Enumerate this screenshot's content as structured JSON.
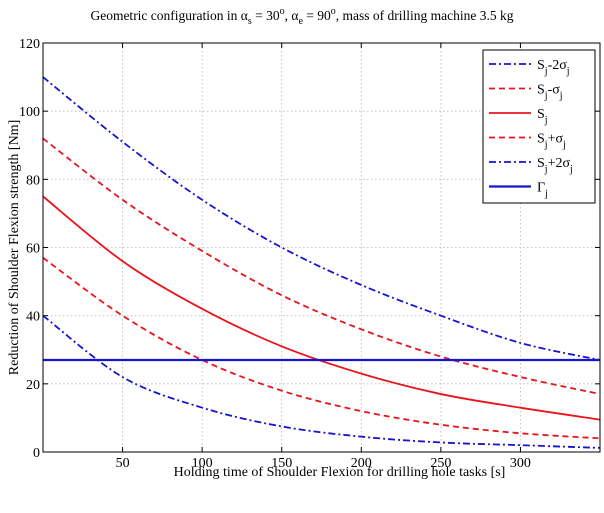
{
  "chart_data": {
    "type": "line",
    "title": {
      "prefix": "Geometric configuration in ",
      "alpha_s_sub": "s",
      "alpha_s_val": " = 30",
      "alpha_s_sup": "o",
      "sep": ", ",
      "alpha_e_sub": "e",
      "alpha_e_val": " = 90",
      "alpha_e_sup": "o",
      "suffix": ", mass of drilling machine 3.5 kg"
    },
    "xlabel": "Holding time of Shoulder Flexion for drilling hole tasks [s]",
    "ylabel": "Reduction of Shoulder Flexion strength [Nm]",
    "xlim": [
      0,
      350
    ],
    "ylim": [
      0,
      120
    ],
    "xticks": [
      "50",
      "100",
      "150",
      "200",
      "250",
      "300"
    ],
    "yticks": [
      "0",
      "20",
      "40",
      "60",
      "80",
      "100",
      "120"
    ],
    "grid": true,
    "legend_position": "top-right",
    "colors": {
      "red": "#e8141c",
      "blue": "#1414d2"
    },
    "x": [
      0,
      50,
      100,
      150,
      200,
      250,
      300,
      350
    ],
    "series": [
      {
        "key": "s_minus_2sigma",
        "values": [
          110,
          91,
          74,
          60,
          49,
          40,
          32,
          27
        ]
      },
      {
        "key": "s_minus_sigma",
        "values": [
          92,
          74,
          59,
          46,
          36,
          28,
          22,
          17
        ]
      },
      {
        "key": "s",
        "values": [
          75,
          56,
          42,
          31,
          23,
          17,
          13,
          9.5
        ]
      },
      {
        "key": "s_plus_sigma",
        "values": [
          57,
          40,
          27,
          18,
          12,
          8,
          5.5,
          4
        ]
      },
      {
        "key": "s_plus_2sigma",
        "values": [
          40,
          22,
          13,
          7.5,
          4.5,
          2.8,
          2,
          1.2
        ]
      },
      {
        "key": "gamma",
        "values": [
          27,
          27,
          27,
          27,
          27,
          27,
          27,
          27
        ]
      }
    ],
    "legend": [
      {
        "main": "S",
        "sub": "j",
        "rest": "-2σ",
        "rest_sub": "j"
      },
      {
        "main": "S",
        "sub": "j",
        "rest": "-σ",
        "rest_sub": "j"
      },
      {
        "main": "S",
        "sub": "j",
        "rest": "",
        "rest_sub": ""
      },
      {
        "main": "S",
        "sub": "j",
        "rest": "+σ",
        "rest_sub": "j"
      },
      {
        "main": "S",
        "sub": "j",
        "rest": "+2σ",
        "rest_sub": "j"
      },
      {
        "main": "Γ",
        "sub": "j",
        "rest": "",
        "rest_sub": ""
      }
    ]
  }
}
